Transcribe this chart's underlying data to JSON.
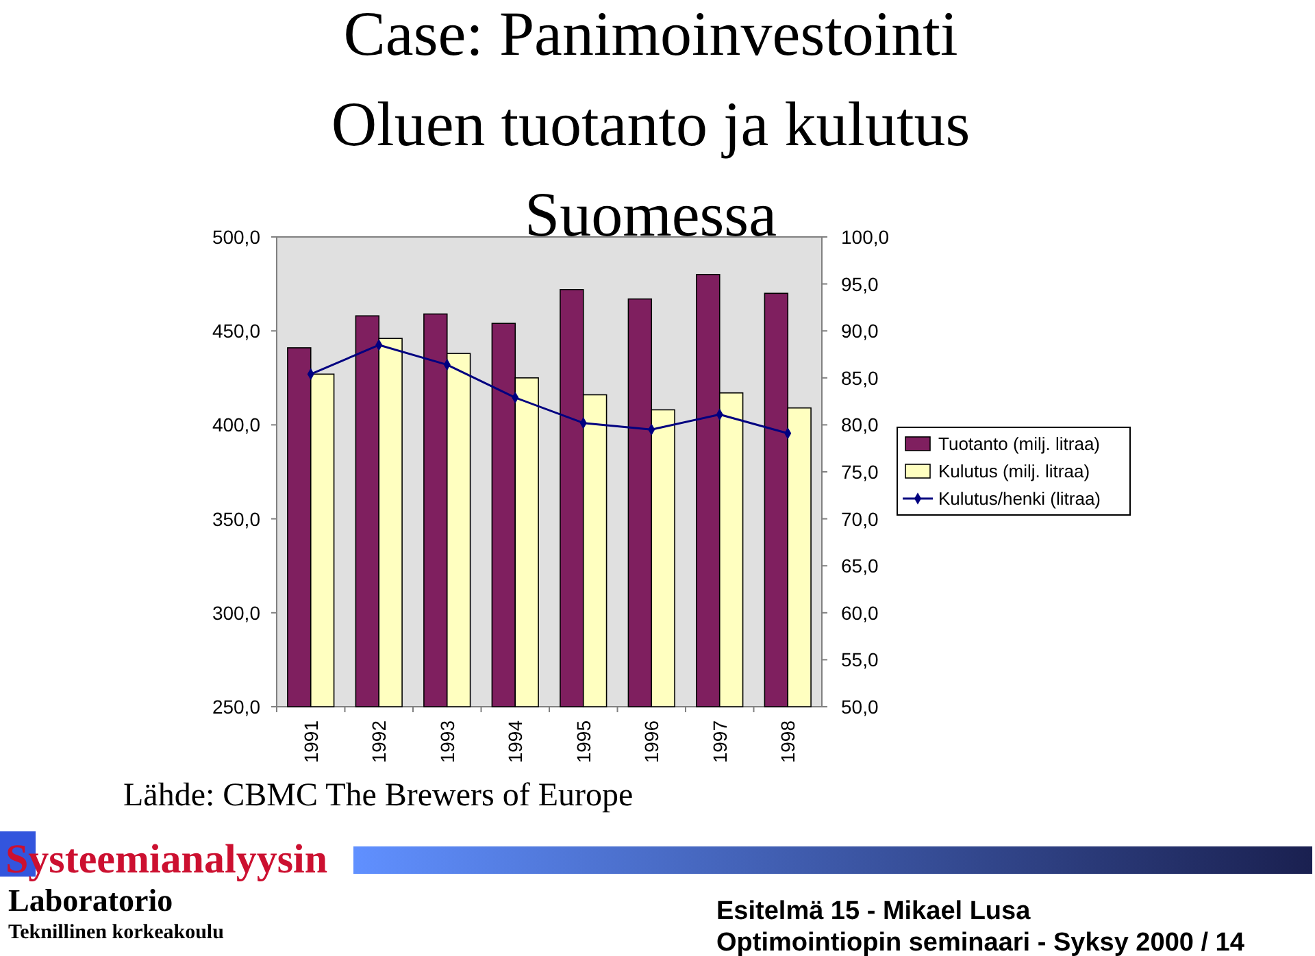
{
  "chart_data": {
    "type": "bar",
    "title": "Case: Panimoinvestointi\nOluen tuotanto ja kulutus\nSuomessa",
    "categories": [
      "1991",
      "1992",
      "1993",
      "1994",
      "1995",
      "1996",
      "1997",
      "1998"
    ],
    "series": [
      {
        "name": "Tuotanto (milj. litraa)",
        "color": "#7f1f5f",
        "values": [
          441,
          458,
          459,
          454,
          472,
          467,
          480,
          470
        ]
      },
      {
        "name": "Kulutus (milj. litraa)",
        "color": "#ffffc0",
        "values": [
          427,
          446,
          438,
          425,
          416,
          408,
          417,
          409
        ]
      },
      {
        "name": "Kulutus/henki (litraa)",
        "type": "line",
        "axis": "y2",
        "color": "#000080",
        "values": [
          85.4,
          88.5,
          86.4,
          82.9,
          80.2,
          79.5,
          81.1,
          79.1
        ]
      }
    ],
    "ylim": [
      250,
      500
    ],
    "yticks": [
      {
        "value": 250,
        "label": "250,0"
      },
      {
        "value": 300,
        "label": "300,0"
      },
      {
        "value": 350,
        "label": "350,0"
      },
      {
        "value": 400,
        "label": "400,0"
      },
      {
        "value": 450,
        "label": "450,0"
      },
      {
        "value": 500,
        "label": "500,0"
      }
    ],
    "y2lim": [
      50,
      100
    ],
    "y2ticks": [
      {
        "value": 50,
        "label": "50,0"
      },
      {
        "value": 55,
        "label": "55,0"
      },
      {
        "value": 60,
        "label": "60,0"
      },
      {
        "value": 65,
        "label": "65,0"
      },
      {
        "value": 70,
        "label": "70,0"
      },
      {
        "value": 75,
        "label": "75,0"
      },
      {
        "value": 80,
        "label": "80,0"
      },
      {
        "value": 85,
        "label": "85,0"
      },
      {
        "value": 90,
        "label": "90,0"
      },
      {
        "value": 95,
        "label": "95,0"
      },
      {
        "value": 100,
        "label": "100,0"
      }
    ],
    "marker": "diamond",
    "legend": "right",
    "annotations": [
      "Lähde: CBMC The Brewers of Europe",
      "Systeemianalyysin",
      "Laboratorio",
      "Teknillinen korkeakoulu",
      "Esitelmä 15 - Mikael Lusa",
      "Optimointiopin seminaari - Syksy 2000 / 14"
    ]
  }
}
